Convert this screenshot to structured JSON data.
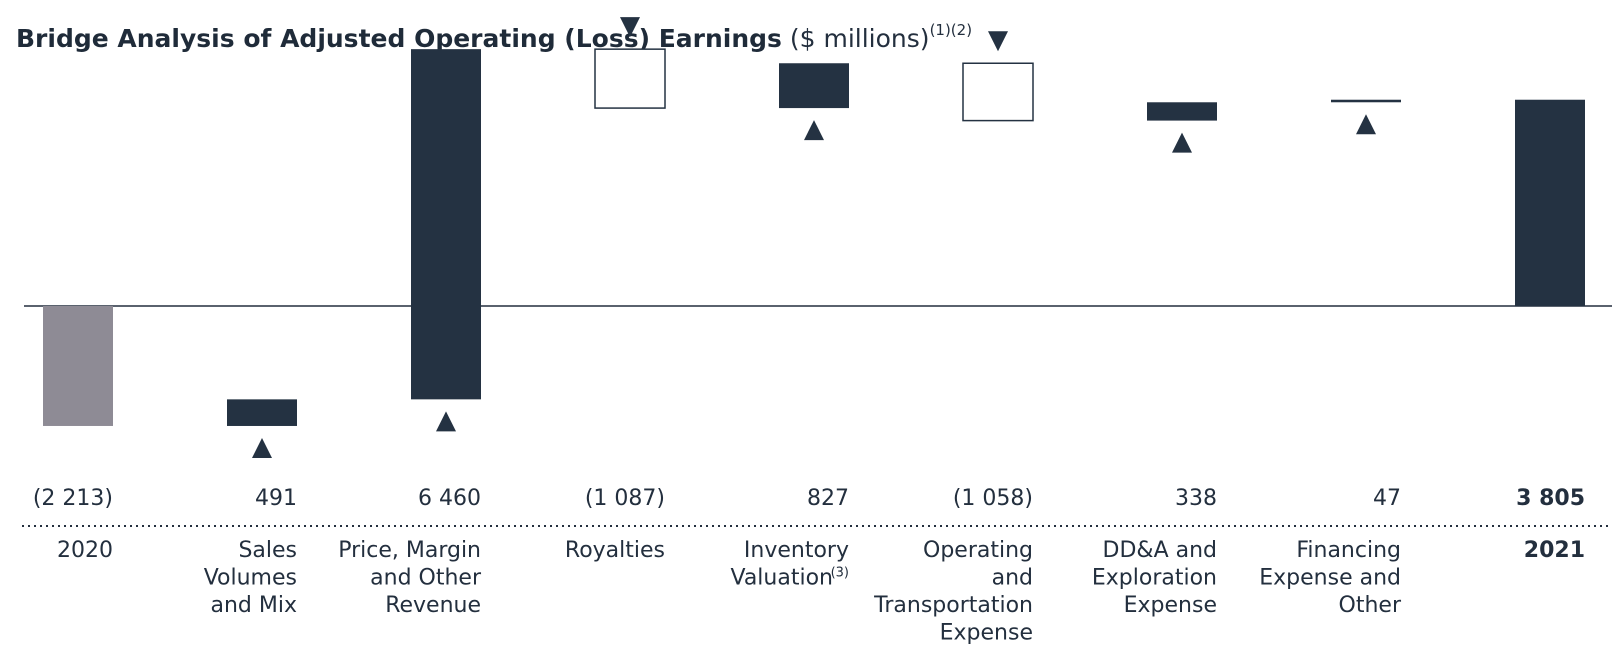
{
  "title": {
    "bold": "Bridge Analysis of Adjusted Operating (Loss) Earnings",
    "unit": "($ millions)",
    "notes": "(1)(2)"
  },
  "colors": {
    "dark": "#243242",
    "start_bar": "#8e8b95",
    "outline": "#243242",
    "text": "#232f3e"
  },
  "chart_data": {
    "type": "waterfall",
    "ylim": [
      -1400,
      3800
    ],
    "items": [
      {
        "category": [
          "2020"
        ],
        "value_label": "(2 213)",
        "value": -2213,
        "kind": "total_start",
        "bold": false,
        "marker": "none"
      },
      {
        "category": [
          "Sales",
          "Volumes",
          "and Mix"
        ],
        "value_label": "491",
        "value": 491,
        "kind": "increase",
        "bold": false,
        "marker": "up"
      },
      {
        "category": [
          "Price, Margin",
          "and Other",
          "Revenue"
        ],
        "value_label": "6 460",
        "value": 6460,
        "kind": "increase",
        "bold": false,
        "marker": "up"
      },
      {
        "category": [
          "Royalties"
        ],
        "value_label": "(1 087)",
        "value": -1087,
        "kind": "decrease",
        "bold": false,
        "marker": "down"
      },
      {
        "category": [
          "Inventory",
          "Valuation"
        ],
        "category_note": "(3)",
        "value_label": "827",
        "value": 827,
        "kind": "increase",
        "bold": false,
        "marker": "up"
      },
      {
        "category": [
          "Operating",
          "and",
          "Transportation",
          "Expense"
        ],
        "value_label": "(1 058)",
        "value": -1058,
        "kind": "decrease",
        "bold": false,
        "marker": "down"
      },
      {
        "category": [
          "DD&A and",
          "Exploration",
          "Expense"
        ],
        "value_label": "338",
        "value": 338,
        "kind": "increase",
        "bold": false,
        "marker": "up"
      },
      {
        "category": [
          "Financing",
          "Expense and",
          "Other"
        ],
        "value_label": "47",
        "value": 47,
        "kind": "increase",
        "bold": false,
        "marker": "up"
      },
      {
        "category": [
          "2021"
        ],
        "value_label": "3 805",
        "value": 3805,
        "kind": "total_end",
        "bold": true,
        "marker": "none"
      }
    ]
  }
}
